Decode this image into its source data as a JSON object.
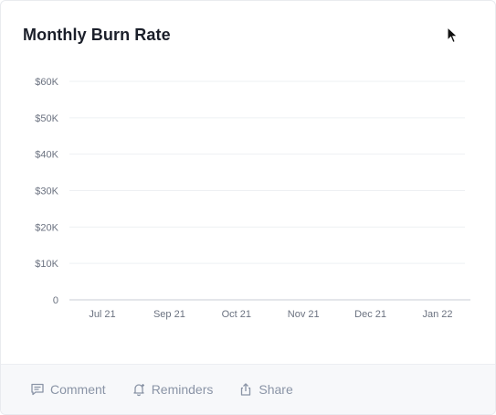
{
  "card": {
    "title": "Monthly Burn Rate"
  },
  "footer": {
    "actions": [
      {
        "label": "Comment",
        "icon": "comment-icon"
      },
      {
        "label": "Reminders",
        "icon": "bell-icon"
      },
      {
        "label": "Share",
        "icon": "share-icon"
      }
    ]
  },
  "colors": {
    "grid": "#eef0f3",
    "axis": "#c9cdd4",
    "tick_text": "#6b7280"
  },
  "chart_data": {
    "type": "bar",
    "title": "Monthly Burn Rate",
    "xlabel": "",
    "ylabel": "",
    "categories": [
      "Jul 21",
      "Sep 21",
      "Oct 21",
      "Nov 21",
      "Dec 21",
      "Jan 22"
    ],
    "values": [
      0,
      0,
      0,
      0,
      0,
      0
    ],
    "ylim": [
      0,
      60000
    ],
    "yticks": [
      0,
      10000,
      20000,
      30000,
      40000,
      50000,
      60000
    ],
    "ytick_labels": [
      "0",
      "$10K",
      "$20K",
      "$30K",
      "$40K",
      "$50K",
      "$60K"
    ],
    "grid": true,
    "legend": "none"
  }
}
